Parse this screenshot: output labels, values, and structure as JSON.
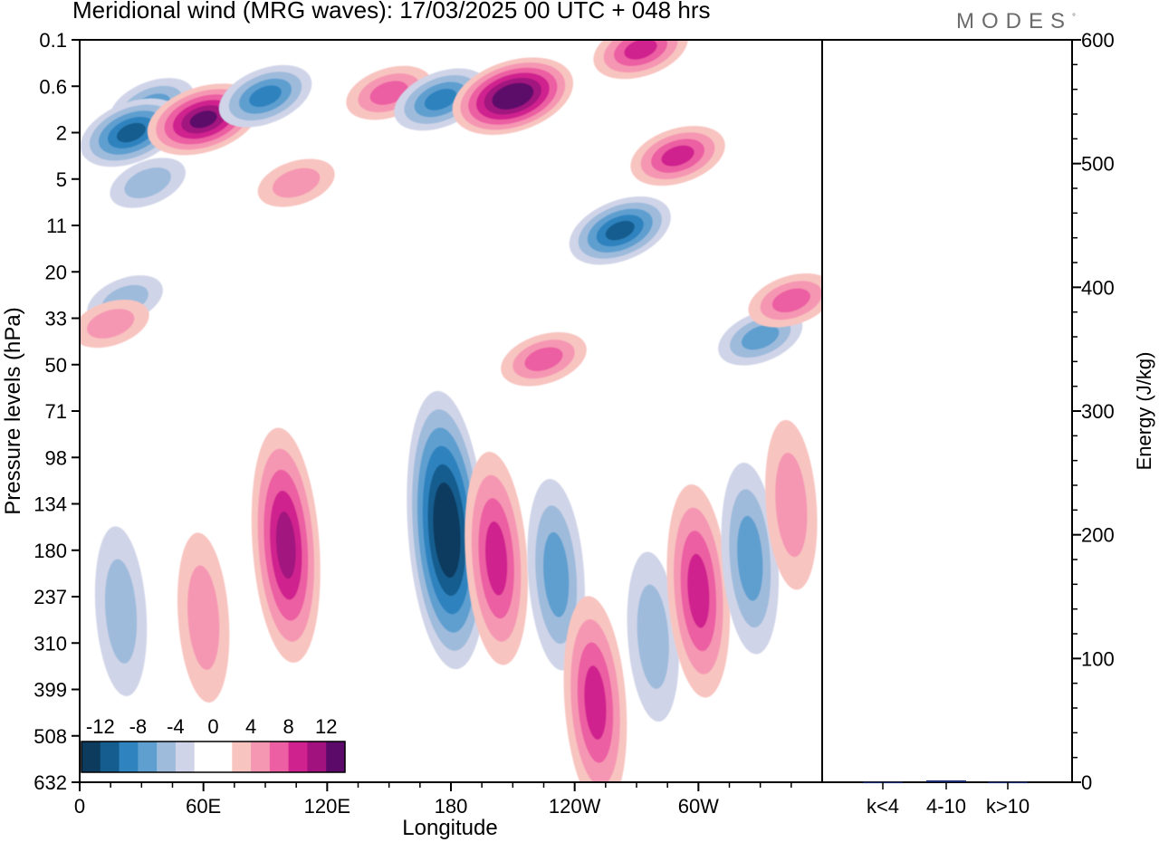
{
  "title": "Meridional wind (MRG waves):  17/03/2025  00 UTC  + 048 hrs",
  "brand": "MODES",
  "brand_mark": "°",
  "colors": {
    "negative": [
      "#0d3b5e",
      "#155d8f",
      "#2f83bf",
      "#5f9fd0",
      "#9ebbdc",
      "#d0d4e8"
    ],
    "positive": [
      "#f8c4c0",
      "#f597b3",
      "#ec5fa2",
      "#d0228e",
      "#a2127f",
      "#5c0a6a"
    ],
    "zero": "#ffffff"
  },
  "chart_data": [
    {
      "type": "heatmap",
      "title": "Meridional wind (MRG waves):  17/03/2025  00 UTC  + 048 hrs",
      "xlabel": "Longitude",
      "ylabel": "Pressure levels (hPa)",
      "xticks": [
        "0",
        "60E",
        "120E",
        "180",
        "120W",
        "60W"
      ],
      "xtick_values": [
        0,
        60,
        120,
        180,
        240,
        300
      ],
      "xlim": [
        0,
        360
      ],
      "yticks": [
        "0.1",
        "0.6",
        "2",
        "5",
        "11",
        "20",
        "33",
        "50",
        "71",
        "98",
        "134",
        "180",
        "237",
        "310",
        "399",
        "508",
        "632"
      ],
      "colorbar": {
        "labels": [
          "-12",
          "-8",
          "-4",
          "0",
          "4",
          "8",
          "12"
        ],
        "levels": [
          -14,
          -12,
          -10,
          -8,
          -6,
          -4,
          -2,
          2,
          4,
          6,
          8,
          10,
          12,
          14
        ]
      },
      "features": [
        {
          "lon": 35,
          "lev": 1.2,
          "value": -6
        },
        {
          "lon": 25,
          "lev": 2,
          "value": -11
        },
        {
          "lon": 60,
          "lev": 1.6,
          "value": 12
        },
        {
          "lon": 90,
          "lev": 0.9,
          "value": -9
        },
        {
          "lon": 150,
          "lev": 0.8,
          "value": 7
        },
        {
          "lon": 175,
          "lev": 1.0,
          "value": -8
        },
        {
          "lon": 210,
          "lev": 0.9,
          "value": 14
        },
        {
          "lon": 272,
          "lev": 0.2,
          "value": 9
        },
        {
          "lon": 262,
          "lev": 12,
          "value": -11
        },
        {
          "lon": 290,
          "lev": 3.5,
          "value": 9
        },
        {
          "lon": 33,
          "lev": 5.5,
          "value": -4
        },
        {
          "lon": 105,
          "lev": 5.5,
          "value": 4
        },
        {
          "lon": 22,
          "lev": 28,
          "value": -4
        },
        {
          "lon": 15,
          "lev": 35,
          "value": 5
        },
        {
          "lon": 330,
          "lev": 40,
          "value": -7
        },
        {
          "lon": 345,
          "lev": 28,
          "value": 6
        },
        {
          "lon": 225,
          "lev": 48,
          "value": 6
        },
        {
          "lon": 100,
          "lev": 175,
          "value": 10
        },
        {
          "lon": 178,
          "lev": 160,
          "value": -15
        },
        {
          "lon": 202,
          "lev": 190,
          "value": 8
        },
        {
          "lon": 231,
          "lev": 210,
          "value": -6
        },
        {
          "lon": 250,
          "lev": 430,
          "value": 8
        },
        {
          "lon": 278,
          "lev": 300,
          "value": -5
        },
        {
          "lon": 300,
          "lev": 230,
          "value": 8
        },
        {
          "lon": 325,
          "lev": 190,
          "value": -6
        },
        {
          "lon": 345,
          "lev": 135,
          "value": 5
        },
        {
          "lon": 20,
          "lev": 260,
          "value": -4
        },
        {
          "lon": 60,
          "lev": 270,
          "value": 5
        }
      ]
    },
    {
      "type": "bar",
      "ylabel": "Energy (J/kg)",
      "categories": [
        "k<4",
        "4-10",
        "k>10"
      ],
      "values": [
        0.3,
        1.5,
        0.3
      ],
      "ylim": [
        0,
        600
      ],
      "yticks": [
        "0",
        "100",
        "200",
        "300",
        "400",
        "500",
        "600"
      ],
      "ytick_values": [
        0,
        100,
        200,
        300,
        400,
        500,
        600
      ]
    }
  ]
}
